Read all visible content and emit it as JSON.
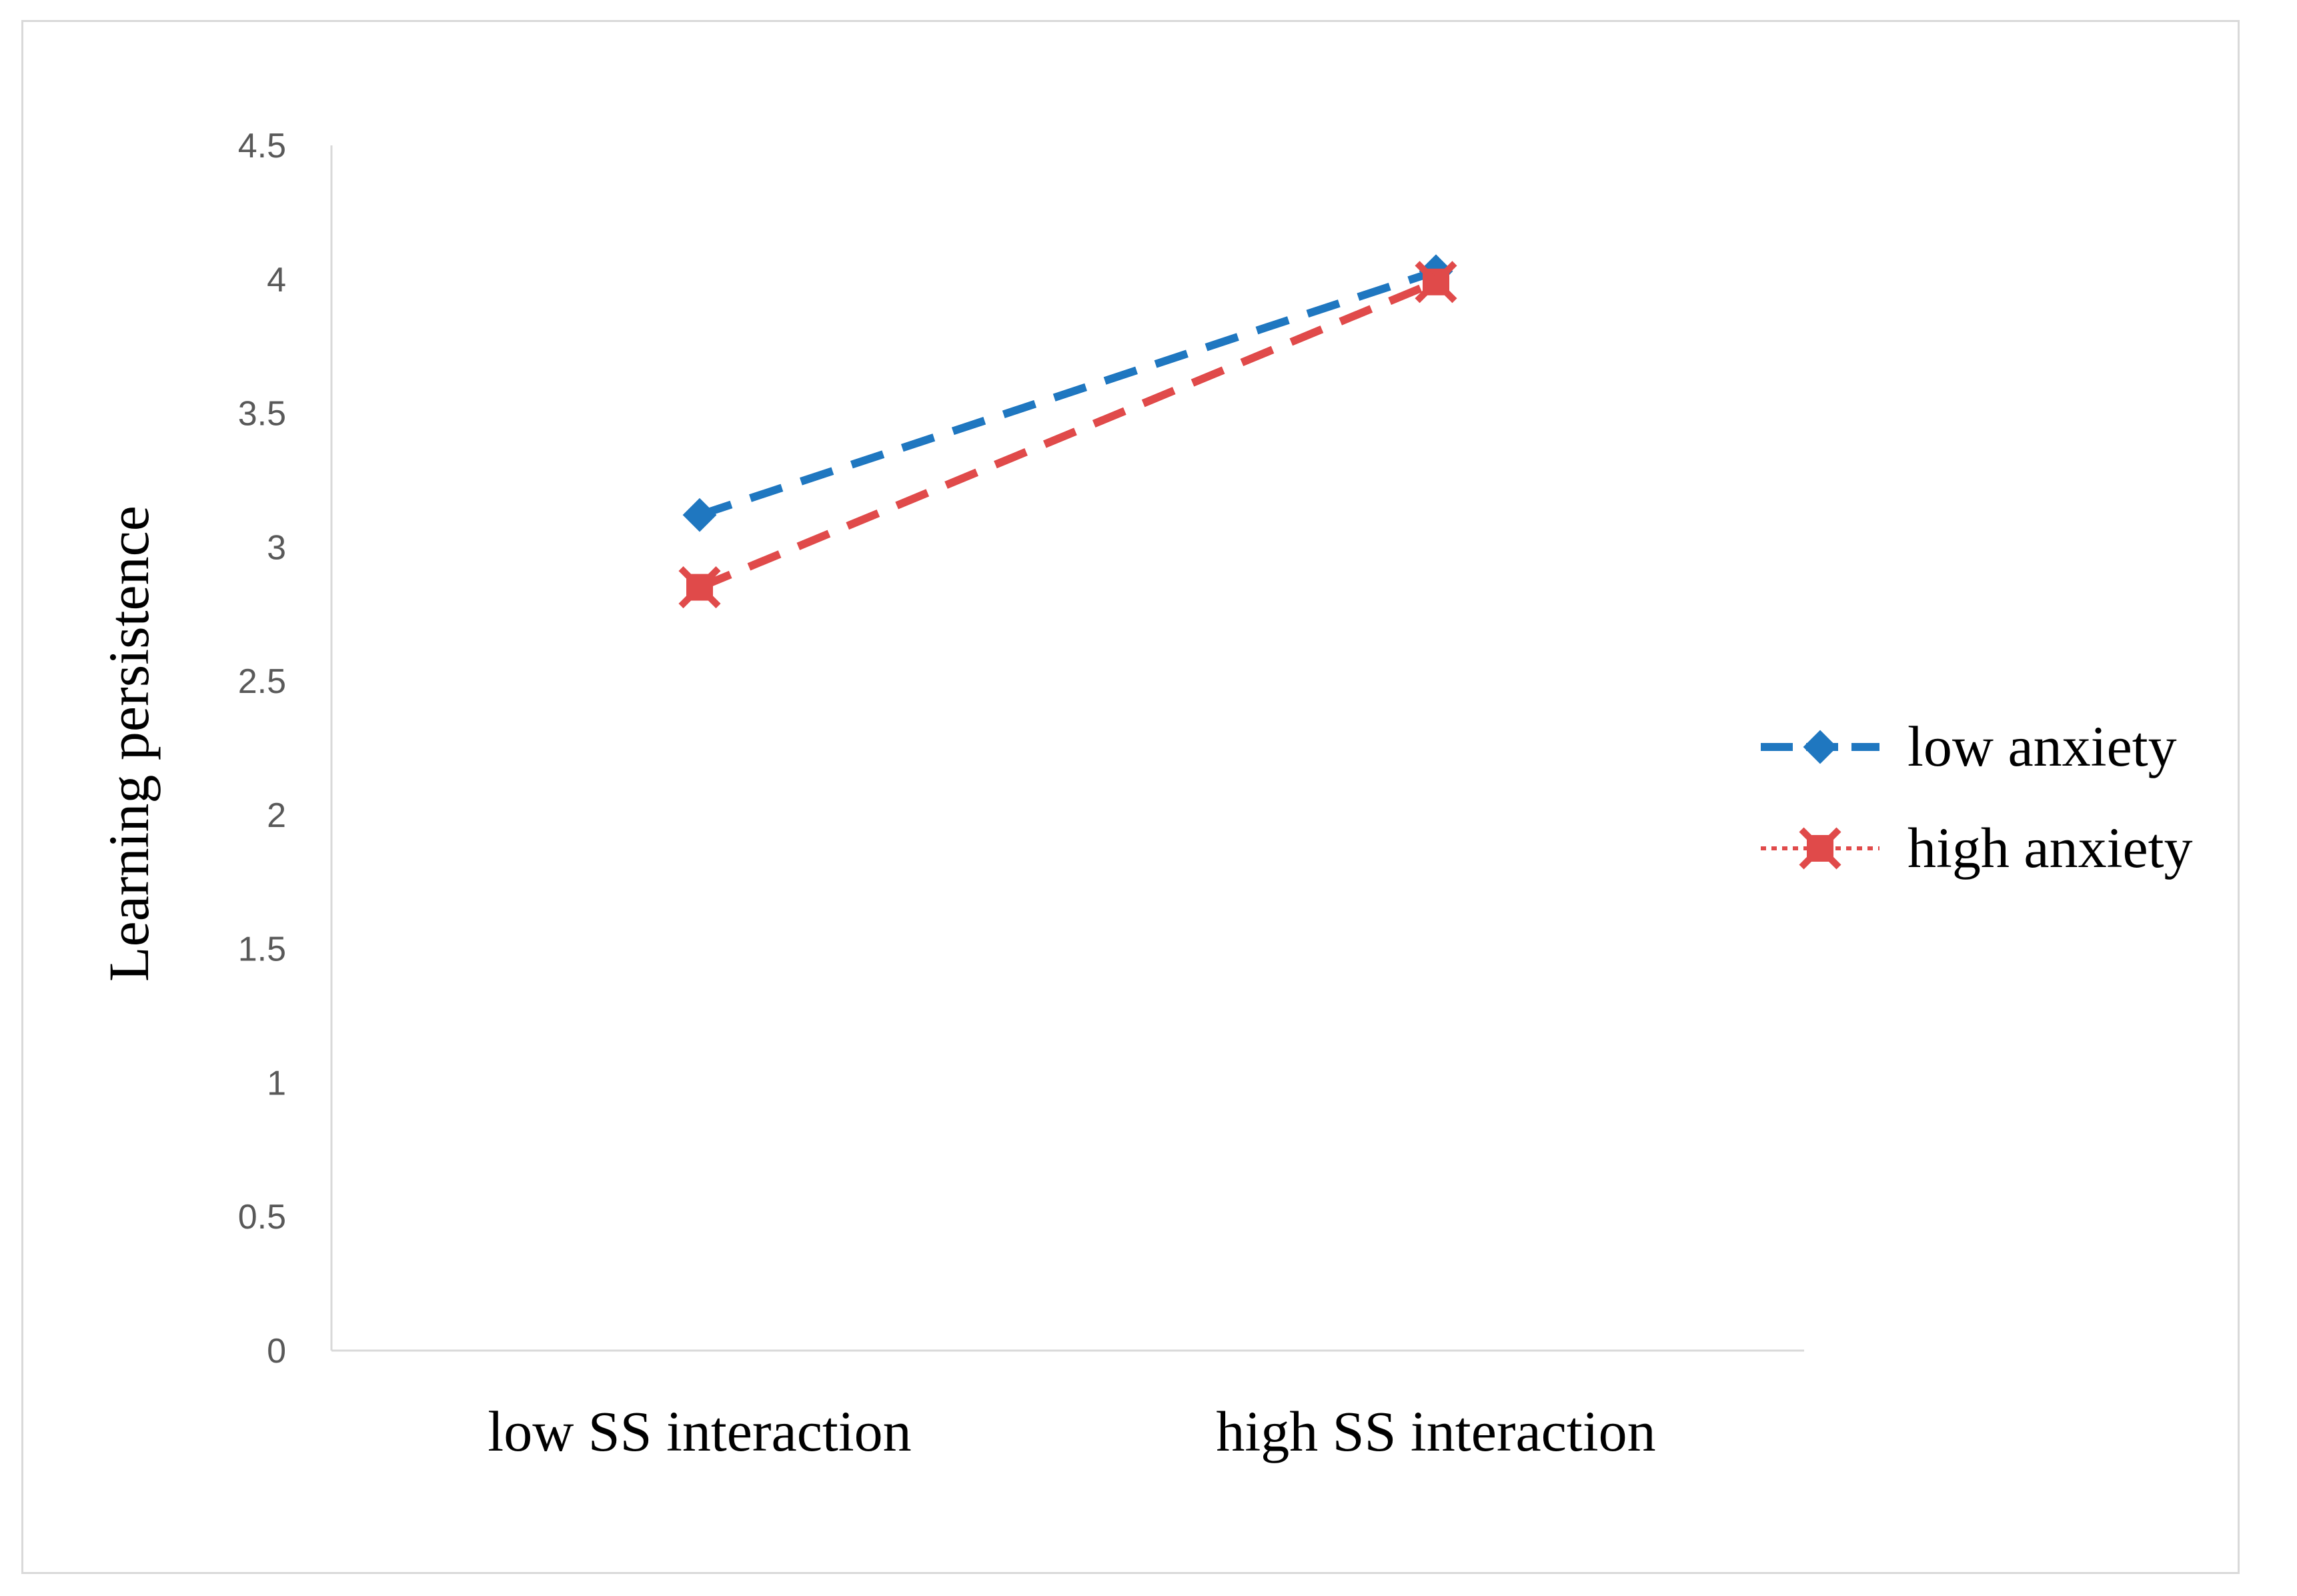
{
  "chart_data": {
    "type": "line",
    "title": "",
    "xlabel": "",
    "ylabel": "Learning persistence",
    "categories": [
      "low SS interaction",
      "high SS interaction"
    ],
    "ylim": [
      0,
      4.5
    ],
    "yticks": [
      "0",
      "0.5",
      "1",
      "1.5",
      "2",
      "2.5",
      "3",
      "3.5",
      "4",
      "4.5"
    ],
    "grid": false,
    "legend": "right",
    "series": [
      {
        "name": "low anxiety",
        "values": [
          3.12,
          4.03
        ],
        "color": "#1f77c0",
        "marker": "diamond",
        "style": "dashed"
      },
      {
        "name": "high anxiety",
        "values": [
          2.85,
          3.99
        ],
        "color": "#e04a4a",
        "marker": "x-square",
        "style": "dashed"
      }
    ]
  }
}
